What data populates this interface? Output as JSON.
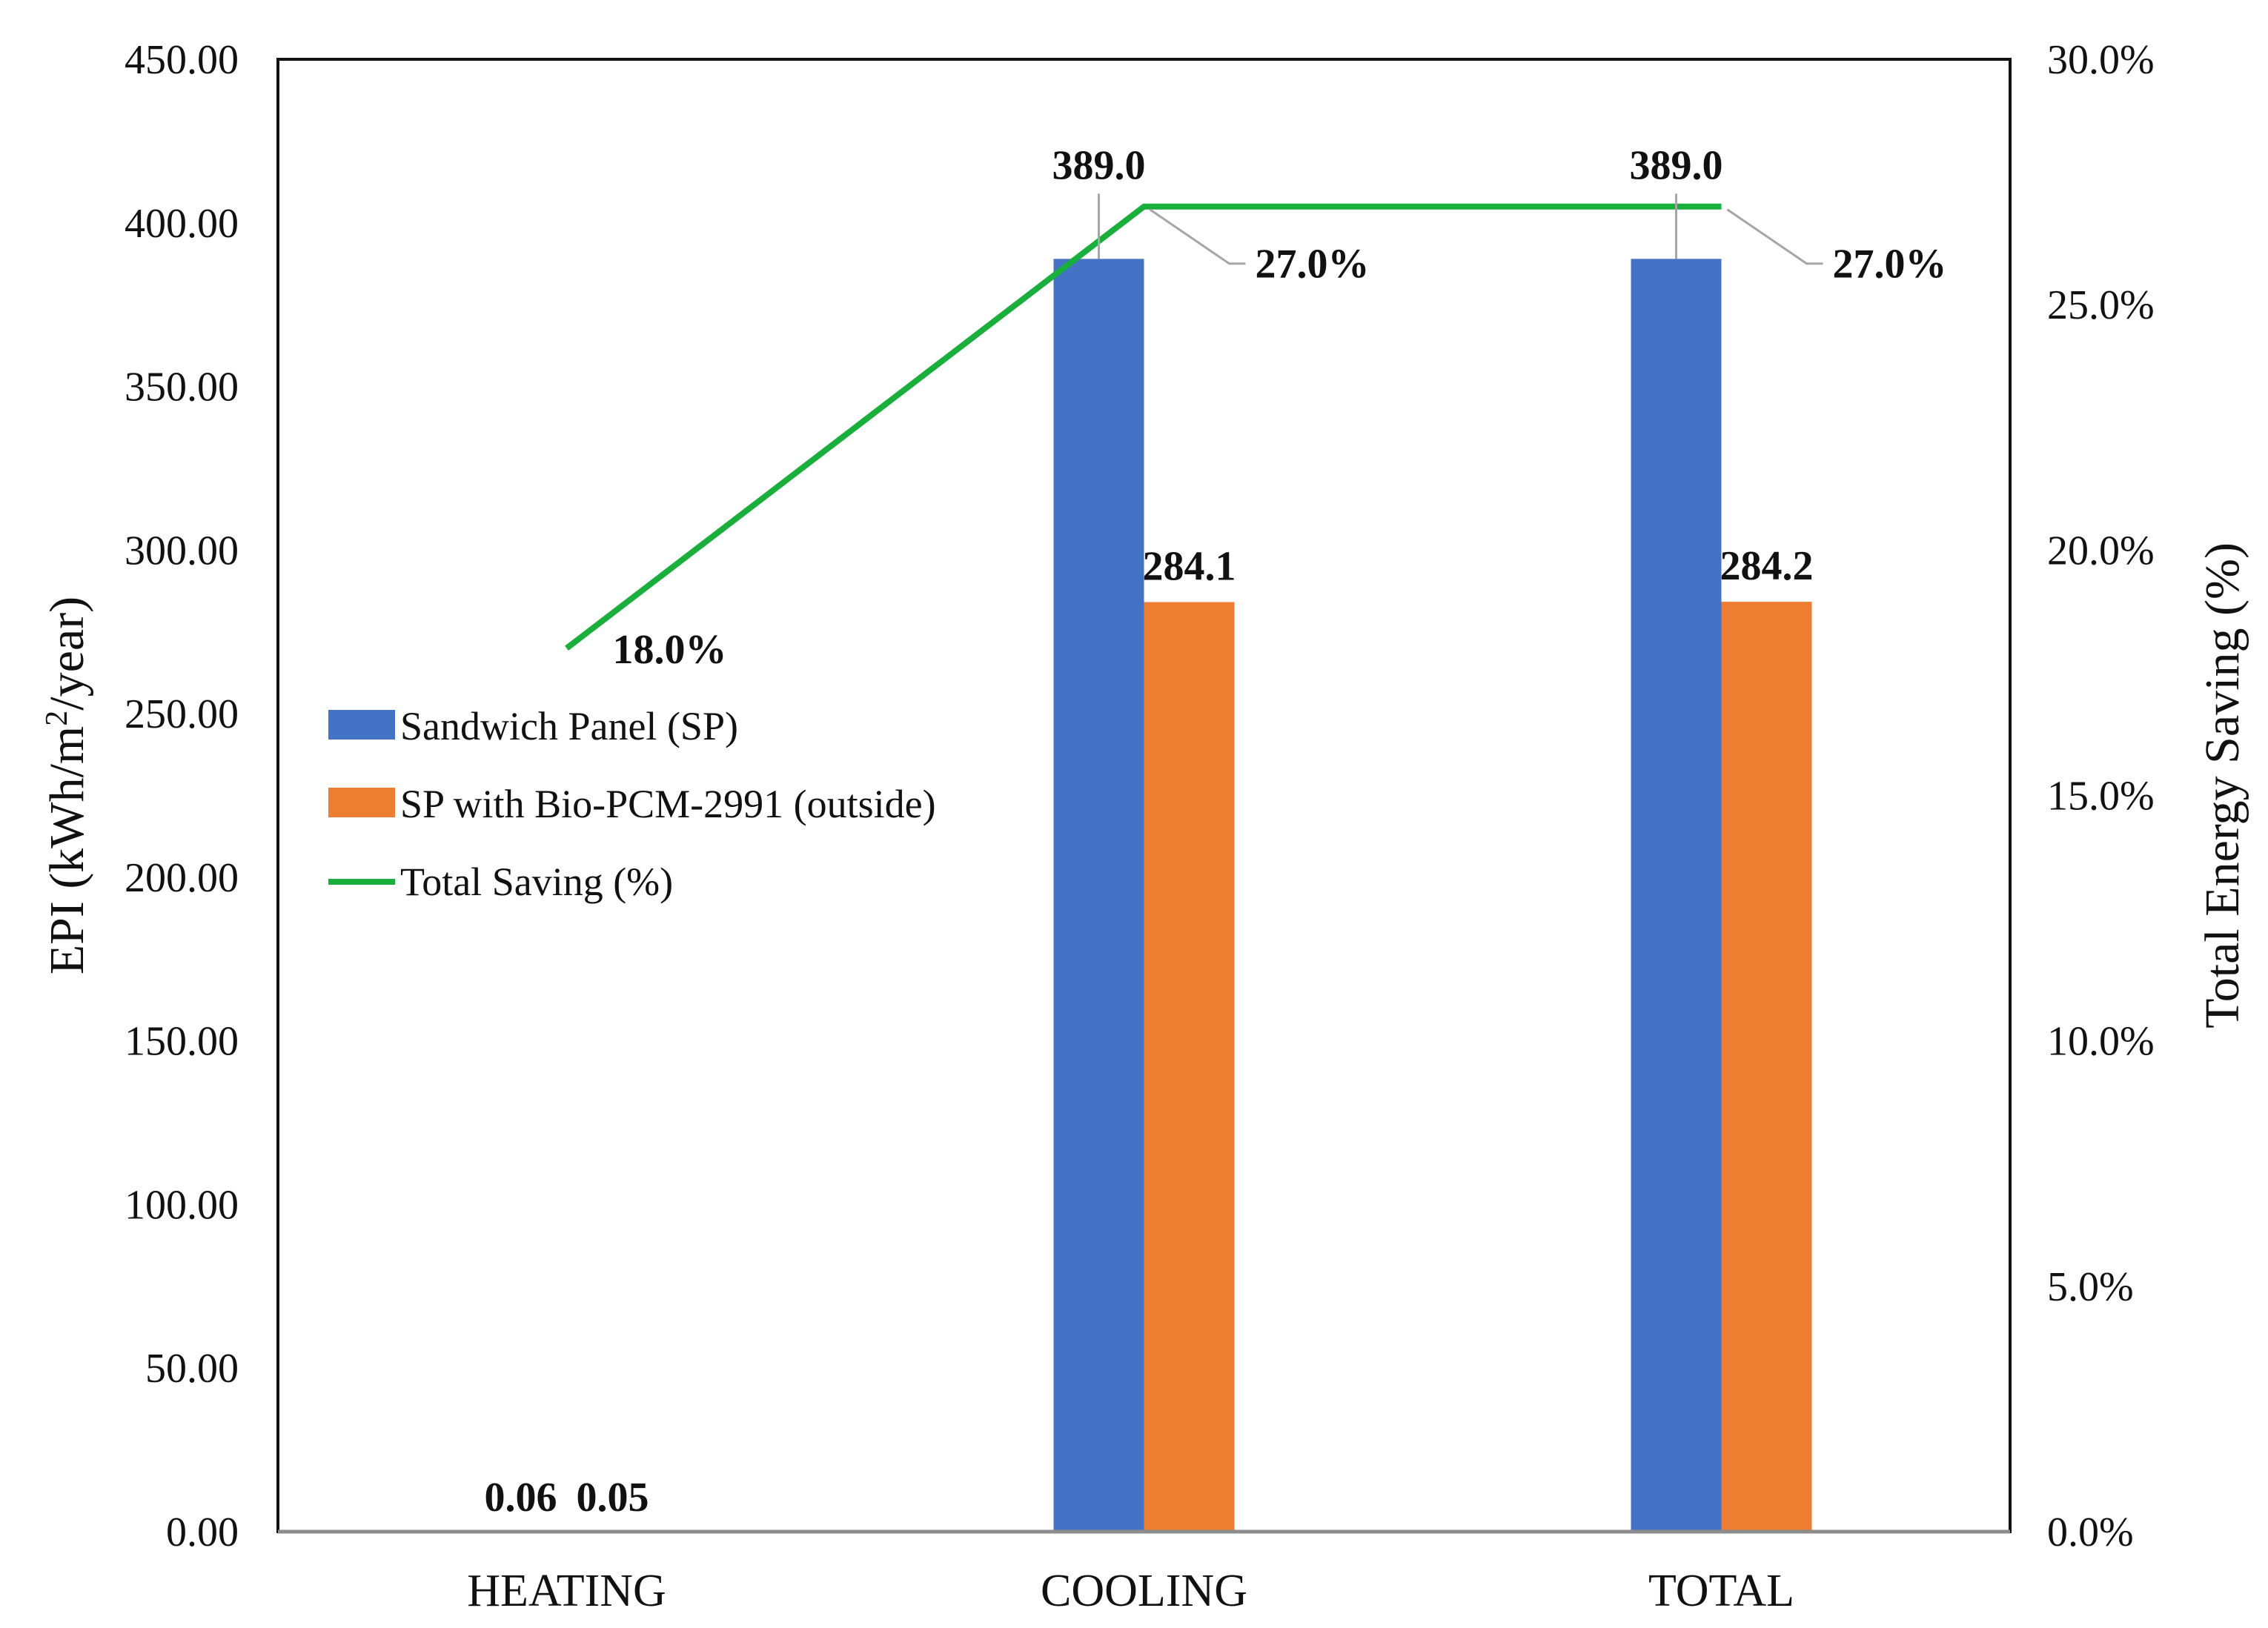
{
  "chart_data": {
    "type": "bar",
    "categories": [
      "HEATING",
      "COOLING",
      "TOTAL"
    ],
    "series": [
      {
        "name": "Sandwich Panel (SP)",
        "axis": "left",
        "kind": "bar",
        "color": "#4472C4",
        "values": [
          0.06,
          389.0,
          389.0
        ],
        "labels": [
          "0.06",
          "389.0",
          "389.0"
        ]
      },
      {
        "name": "SP with Bio-PCM-2991 (outside)",
        "axis": "left",
        "kind": "bar",
        "color": "#ED7D31",
        "values": [
          0.05,
          284.1,
          284.2
        ],
        "labels": [
          "0.05",
          "284.1",
          "284.2"
        ]
      },
      {
        "name": "Total Saving (%)",
        "axis": "right",
        "kind": "line",
        "color": "#1AAF3C",
        "values": [
          18.0,
          27.0,
          27.0
        ],
        "labels": [
          "18.0%",
          "27.0%",
          "27.0%"
        ]
      }
    ],
    "ylabel_parts": [
      "EPI (kWh/m",
      "2",
      "/year)"
    ],
    "y2label": "Total Energy Saving (%)",
    "ylim": [
      0,
      450
    ],
    "y2lim": [
      0,
      30
    ],
    "yticks": [
      "0.00",
      "50.00",
      "100.00",
      "150.00",
      "200.00",
      "250.00",
      "300.00",
      "350.00",
      "400.00",
      "450.00"
    ],
    "y2ticks": [
      "0.0%",
      "5.0%",
      "10.0%",
      "15.0%",
      "20.0%",
      "25.0%",
      "30.0%"
    ],
    "legend_position": "center-left"
  }
}
